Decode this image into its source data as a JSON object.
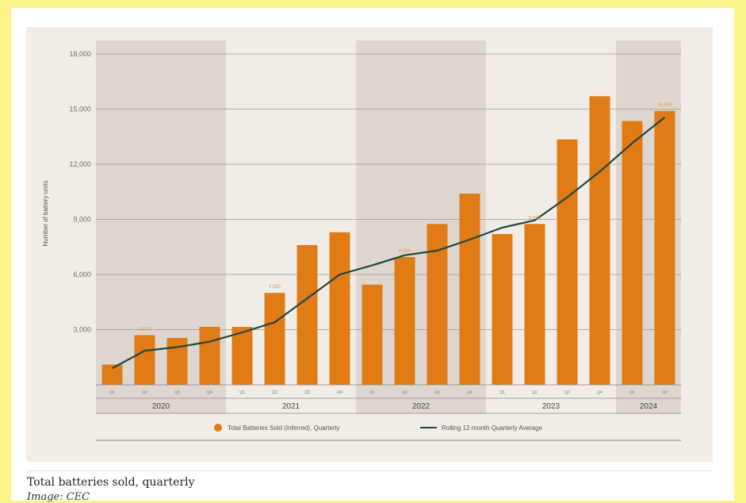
{
  "chart_data": {
    "type": "bar",
    "ylabel": "Number of battery units",
    "ylim": [
      0,
      18000
    ],
    "yticks": [
      3000,
      6000,
      9000,
      12000,
      15000,
      18000
    ],
    "ytick_labels": [
      "3,000",
      "6,000",
      "9,000",
      "12,000",
      "15,000",
      "18,000"
    ],
    "categories": [
      "2020 Q1",
      "2020 Q2",
      "2020 Q3",
      "2020 Q4",
      "2021 Q1",
      "2021 Q2",
      "2021 Q3",
      "2021 Q4",
      "2022 Q1",
      "2022 Q2",
      "2022 Q3",
      "2022 Q4",
      "2023 Q1",
      "2023 Q2",
      "2023 Q3",
      "2023 Q4",
      "2024 Q1",
      "2024 Q2"
    ],
    "quarter_labels": [
      "Q1",
      "Q2",
      "Q3",
      "Q4",
      "Q1",
      "Q2",
      "Q3",
      "Q4",
      "Q1",
      "Q2",
      "Q3",
      "Q4",
      "Q1",
      "Q2",
      "Q3",
      "Q4",
      "Q1",
      "Q2"
    ],
    "years": [
      {
        "label": "2020",
        "start": 0,
        "count": 4,
        "shaded": true
      },
      {
        "label": "2021",
        "start": 4,
        "count": 4,
        "shaded": false
      },
      {
        "label": "2022",
        "start": 8,
        "count": 4,
        "shaded": true
      },
      {
        "label": "2023",
        "start": 12,
        "count": 4,
        "shaded": false
      },
      {
        "label": "2024",
        "start": 16,
        "count": 2,
        "shaded": true
      }
    ],
    "series": [
      {
        "name": "Total Batteries Sold (Inferred), Quarterly",
        "kind": "bar",
        "color": "#e07b15",
        "values": [
          1100,
          2700,
          2550,
          3150,
          3150,
          5000,
          7600,
          8300,
          5450,
          6950,
          8750,
          10400,
          8200,
          8750,
          13350,
          15700,
          14350,
          14904
        ]
      },
      {
        "name": "Rolling 12-month Quarterly Average",
        "kind": "line",
        "color": "#23453f",
        "values": [
          900,
          1850,
          2050,
          2350,
          2850,
          3400,
          4700,
          6000,
          6500,
          7050,
          7300,
          7900,
          8550,
          8950,
          10200,
          11600,
          13150,
          14550
        ]
      }
    ],
    "annotations": [
      {
        "index": 1,
        "text": "2,673"
      },
      {
        "index": 5,
        "text": "4,985"
      },
      {
        "index": 9,
        "text": "6,980"
      },
      {
        "index": 13,
        "text": "8,680"
      },
      {
        "index": 17,
        "text": "14,904"
      }
    ],
    "legend_position": "bottom",
    "grid": true,
    "colors": {
      "bar": "#e07b15",
      "line": "#23453f",
      "annotation": "#e69a55",
      "shade": "#ddd7cf",
      "panel": "#f1ede6",
      "grid": "#9e9890"
    }
  },
  "caption": "Total batteries sold, quarterly",
  "credit": "Image: CEC"
}
